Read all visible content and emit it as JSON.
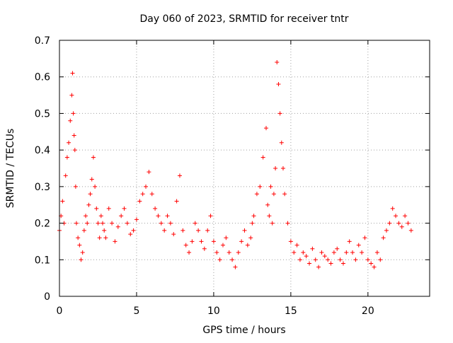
{
  "chart_data": {
    "type": "scatter",
    "title": "Day 060 of 2023, SRMTID for receiver tntr",
    "xlabel": "GPS time / hours",
    "ylabel": "SRMTID / TECUs",
    "xlim": [
      0,
      24
    ],
    "ylim": [
      0,
      0.7
    ],
    "x_ticks": [
      0,
      5,
      10,
      15,
      20
    ],
    "x_tick_labels": [
      "0",
      "5",
      "10",
      "15",
      "20"
    ],
    "y_ticks": [
      0,
      0.1,
      0.2,
      0.3,
      0.4,
      0.5,
      0.6,
      0.7
    ],
    "y_tick_labels": [
      "0",
      "0.1",
      "0.2",
      "0.3",
      "0.4",
      "0.5",
      "0.6",
      "0.7"
    ],
    "grid": true,
    "marker": "+",
    "color": "#ff0000",
    "series": [
      {
        "name": "SRMTID",
        "x": [
          0.0,
          0.1,
          0.2,
          0.3,
          0.4,
          0.5,
          0.6,
          0.7,
          0.8,
          0.85,
          0.9,
          0.95,
          1.0,
          1.05,
          1.1,
          1.2,
          1.3,
          1.4,
          1.5,
          1.6,
          1.7,
          1.8,
          1.9,
          2.0,
          2.1,
          2.2,
          2.3,
          2.4,
          2.5,
          2.6,
          2.7,
          2.8,
          2.9,
          3.0,
          3.2,
          3.4,
          3.6,
          3.8,
          4.0,
          4.2,
          4.4,
          4.6,
          4.8,
          5.0,
          5.2,
          5.4,
          5.6,
          5.8,
          6.0,
          6.2,
          6.4,
          6.6,
          6.8,
          7.0,
          7.2,
          7.4,
          7.6,
          7.8,
          8.0,
          8.2,
          8.4,
          8.6,
          8.8,
          9.0,
          9.2,
          9.4,
          9.6,
          9.8,
          10.0,
          10.2,
          10.4,
          10.6,
          10.8,
          11.0,
          11.2,
          11.4,
          11.6,
          11.8,
          12.0,
          12.2,
          12.4,
          12.5,
          12.6,
          12.8,
          13.0,
          13.2,
          13.4,
          13.5,
          13.6,
          13.7,
          13.8,
          13.9,
          14.0,
          14.1,
          14.2,
          14.3,
          14.4,
          14.5,
          14.6,
          14.8,
          15.0,
          15.2,
          15.4,
          15.6,
          15.8,
          16.0,
          16.2,
          16.4,
          16.6,
          16.8,
          17.0,
          17.2,
          17.4,
          17.6,
          17.8,
          18.0,
          18.2,
          18.4,
          18.6,
          18.8,
          19.0,
          19.2,
          19.4,
          19.6,
          19.8,
          20.0,
          20.2,
          20.4,
          20.6,
          20.8,
          21.0,
          21.2,
          21.4,
          21.6,
          21.8,
          22.0,
          22.2,
          22.4,
          22.6,
          22.8
        ],
        "y": [
          0.18,
          0.22,
          0.26,
          0.2,
          0.33,
          0.38,
          0.42,
          0.48,
          0.55,
          0.61,
          0.5,
          0.44,
          0.4,
          0.3,
          0.2,
          0.16,
          0.14,
          0.1,
          0.12,
          0.18,
          0.22,
          0.2,
          0.25,
          0.28,
          0.32,
          0.38,
          0.3,
          0.24,
          0.2,
          0.16,
          0.22,
          0.2,
          0.18,
          0.16,
          0.24,
          0.2,
          0.15,
          0.19,
          0.22,
          0.24,
          0.2,
          0.17,
          0.18,
          0.21,
          0.26,
          0.28,
          0.3,
          0.34,
          0.28,
          0.24,
          0.22,
          0.2,
          0.18,
          0.22,
          0.2,
          0.17,
          0.26,
          0.33,
          0.18,
          0.14,
          0.12,
          0.15,
          0.2,
          0.18,
          0.15,
          0.13,
          0.18,
          0.22,
          0.15,
          0.12,
          0.1,
          0.14,
          0.16,
          0.12,
          0.1,
          0.08,
          0.12,
          0.15,
          0.18,
          0.14,
          0.16,
          0.2,
          0.22,
          0.28,
          0.3,
          0.38,
          0.46,
          0.25,
          0.22,
          0.3,
          0.2,
          0.28,
          0.35,
          0.64,
          0.58,
          0.5,
          0.42,
          0.35,
          0.28,
          0.2,
          0.15,
          0.12,
          0.14,
          0.1,
          0.12,
          0.11,
          0.09,
          0.13,
          0.1,
          0.08,
          0.12,
          0.11,
          0.1,
          0.09,
          0.12,
          0.13,
          0.1,
          0.09,
          0.12,
          0.15,
          0.12,
          0.1,
          0.14,
          0.12,
          0.16,
          0.1,
          0.09,
          0.08,
          0.12,
          0.1,
          0.16,
          0.18,
          0.2,
          0.24,
          0.22,
          0.2,
          0.19,
          0.22,
          0.2,
          0.18
        ]
      }
    ]
  }
}
